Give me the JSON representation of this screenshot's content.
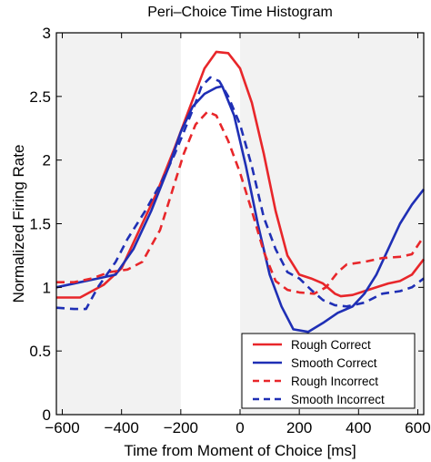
{
  "chart_data": {
    "type": "line",
    "title": "Peri–Choice Time Histogram",
    "xlabel": "Time from Moment of Choice [ms]",
    "ylabel": "Normalized Firing Rate",
    "xlim": [
      -620,
      620
    ],
    "ylim": [
      0,
      3
    ],
    "xticks": [
      -600,
      -400,
      -200,
      0,
      200,
      400,
      600
    ],
    "xtick_labels": [
      "−600",
      "−400",
      "−200",
      "0",
      "200",
      "400",
      "600"
    ],
    "yticks": [
      0,
      0.5,
      1,
      1.5,
      2,
      2.5,
      3
    ],
    "ytick_labels": [
      "0",
      "0.5",
      "1",
      "1.5",
      "2",
      "2.5",
      "3"
    ],
    "grid": false,
    "legend_position": "bottom-right",
    "shaded_regions": [
      {
        "x0": -620,
        "x1": -200,
        "color": "#f2f2f2"
      },
      {
        "x0": 0,
        "x1": 620,
        "color": "#f2f2f2"
      }
    ],
    "series": [
      {
        "name": "Rough Correct",
        "color": "#e8262a",
        "dash": "solid",
        "x": [
          -620,
          -540,
          -460,
          -400,
          -340,
          -280,
          -220,
          -180,
          -120,
          -80,
          -40,
          0,
          40,
          80,
          120,
          160,
          200,
          240,
          280,
          320,
          340,
          380,
          420,
          460,
          500,
          540,
          580,
          620
        ],
        "y": [
          0.92,
          0.92,
          1.02,
          1.15,
          1.45,
          1.75,
          2.1,
          2.35,
          2.72,
          2.85,
          2.84,
          2.72,
          2.45,
          2.05,
          1.6,
          1.25,
          1.1,
          1.07,
          1.03,
          0.95,
          0.93,
          0.94,
          0.97,
          1.0,
          1.03,
          1.05,
          1.1,
          1.22
        ]
      },
      {
        "name": "Smooth Correct",
        "color": "#1f2fb5",
        "dash": "solid",
        "x": [
          -620,
          -540,
          -480,
          -420,
          -360,
          -300,
          -240,
          -200,
          -160,
          -120,
          -80,
          -60,
          -20,
          20,
          60,
          100,
          140,
          180,
          230,
          280,
          330,
          380,
          420,
          460,
          500,
          540,
          580,
          620
        ],
        "y": [
          1.0,
          1.04,
          1.07,
          1.1,
          1.3,
          1.6,
          1.95,
          2.22,
          2.42,
          2.52,
          2.57,
          2.58,
          2.35,
          1.95,
          1.5,
          1.1,
          0.85,
          0.67,
          0.65,
          0.72,
          0.8,
          0.85,
          0.95,
          1.1,
          1.3,
          1.5,
          1.65,
          1.77
        ]
      },
      {
        "name": "Rough Incorrect",
        "color": "#e8262a",
        "dash": "dashed",
        "x": [
          -620,
          -560,
          -500,
          -440,
          -380,
          -330,
          -270,
          -230,
          -190,
          -150,
          -110,
          -80,
          -40,
          0,
          40,
          80,
          120,
          160,
          200,
          250,
          290,
          330,
          360,
          420,
          480,
          540,
          580,
          620
        ],
        "y": [
          1.04,
          1.04,
          1.07,
          1.12,
          1.14,
          1.2,
          1.45,
          1.75,
          2.05,
          2.28,
          2.38,
          2.35,
          2.15,
          1.9,
          1.6,
          1.28,
          1.05,
          0.98,
          0.96,
          0.95,
          1.0,
          1.12,
          1.18,
          1.2,
          1.23,
          1.24,
          1.26,
          1.4
        ]
      },
      {
        "name": "Smooth Incorrect",
        "color": "#1f2fb5",
        "dash": "dashed",
        "x": [
          -620,
          -560,
          -520,
          -480,
          -420,
          -380,
          -320,
          -260,
          -220,
          -190,
          -150,
          -130,
          -100,
          -70,
          -40,
          0,
          40,
          80,
          120,
          160,
          200,
          240,
          280,
          320,
          360,
          420,
          480,
          540,
          580,
          620
        ],
        "y": [
          0.84,
          0.83,
          0.83,
          1.0,
          1.2,
          1.38,
          1.6,
          1.85,
          2.05,
          2.22,
          2.45,
          2.58,
          2.65,
          2.62,
          2.5,
          2.28,
          1.95,
          1.55,
          1.3,
          1.12,
          1.07,
          0.98,
          0.9,
          0.86,
          0.85,
          0.88,
          0.95,
          0.97,
          1.0,
          1.07
        ]
      }
    ]
  }
}
